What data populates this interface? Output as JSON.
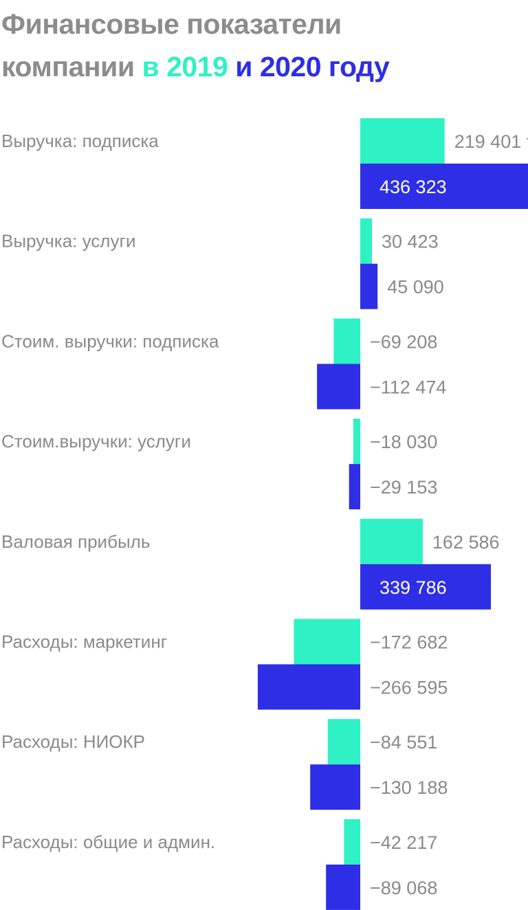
{
  "title": {
    "line1": "Финансовые показатели",
    "line2_start": "компании",
    "year1_text": "в 2019",
    "connector": "и",
    "year2_text": "2020 году"
  },
  "colors": {
    "title": "#8c8c8c",
    "series_2019": "#2ef2c4",
    "series_2020": "#2d2ee6",
    "label": "#8a8a8a",
    "label_inside": "#ffffff",
    "label_inside_light": "#555555"
  },
  "chart_data": {
    "type": "bar",
    "orientation": "horizontal",
    "unit_label": "тыс. $",
    "categories": [
      "Выручка: подписка",
      "Выручка: услуги",
      "Стоим. выручки: подписка",
      "Стоим.выручки: услуги",
      "Валовая прибыль",
      "Расходы: маркетинг",
      "Расходы: НИОКР",
      "Расходы: общие и админ."
    ],
    "series": [
      {
        "name": "2019",
        "color": "#2ef2c4",
        "values": [
          219401,
          30423,
          -69208,
          -18030,
          162586,
          -172682,
          -84551,
          -42217
        ],
        "labels": [
          "219 401",
          "30 423",
          "−69 208",
          "−18 030",
          "162 586",
          "−172 682",
          "−84 551",
          "−42 217"
        ]
      },
      {
        "name": "2020",
        "color": "#2d2ee6",
        "values": [
          436323,
          45090,
          -112474,
          -29153,
          339786,
          -266595,
          -130188,
          -89068
        ],
        "labels": [
          "436 323",
          "45 090",
          "−112 474",
          "−29 153",
          "339 786",
          "−266 595",
          "−130 188",
          "−89 068"
        ]
      }
    ],
    "grid": false,
    "legend": "in title"
  }
}
